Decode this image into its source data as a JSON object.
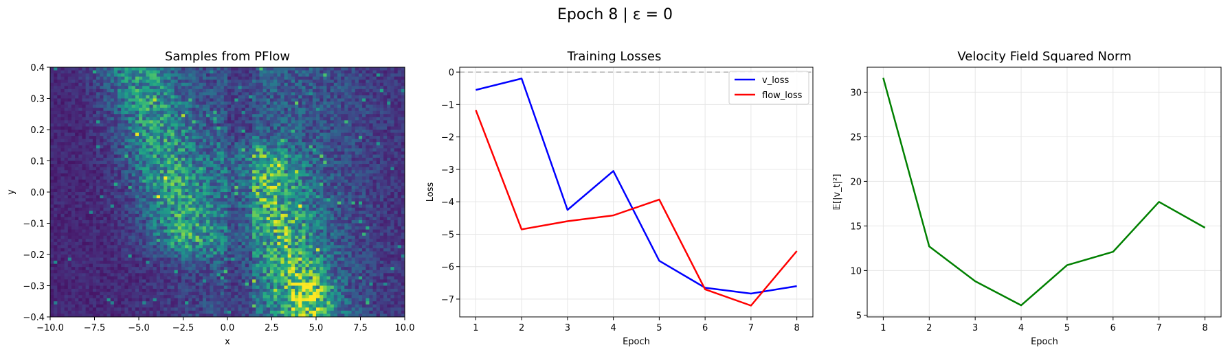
{
  "suptitle": "Epoch 8 | ε = 0",
  "chart_data": [
    {
      "type": "heatmap",
      "title": "Samples from PFlow",
      "xlabel": "x",
      "ylabel": "y",
      "xlim": [
        -10,
        10
      ],
      "ylim": [
        -0.4,
        0.4
      ],
      "x_ticks": [
        "−10.0",
        "−7.5",
        "−5.0",
        "−2.5",
        "0.0",
        "2.5",
        "5.0",
        "7.5",
        "10.0"
      ],
      "y_ticks": [
        "−0.4",
        "−0.3",
        "−0.2",
        "−0.1",
        "0.0",
        "0.1",
        "0.2",
        "0.3",
        "0.4"
      ],
      "colormap": "viridis",
      "bins": [
        100,
        80
      ],
      "distribution": {
        "description_of_bands": "two diagonal bands of sample density",
        "band_1": {
          "x_at_y_top": -5.0,
          "x_at_y_bottom": -1.0,
          "y_range": [
            -0.15,
            0.4
          ]
        },
        "band_2": {
          "x_at_y_top": 0.5,
          "x_at_y_bottom": 4.5,
          "y_range": [
            -0.4,
            0.1
          ]
        },
        "peak_region": {
          "x": 4.5,
          "y": -0.33
        }
      }
    },
    {
      "type": "line",
      "title": "Training Losses",
      "xlabel": "Epoch",
      "ylabel": "Loss",
      "x": [
        1,
        2,
        3,
        4,
        5,
        6,
        7,
        8
      ],
      "xlim": [
        0.65,
        8.35
      ],
      "ylim": [
        -7.55,
        0.15
      ],
      "x_ticks": [
        "1",
        "2",
        "3",
        "4",
        "5",
        "6",
        "7",
        "8"
      ],
      "y_ticks": [
        "−7",
        "−6",
        "−5",
        "−4",
        "−3",
        "−2",
        "−1",
        "0"
      ],
      "hline": {
        "y": 0,
        "style": "dashed",
        "color": "#b3b3b3"
      },
      "legend_position": "upper right",
      "grid": true,
      "series": [
        {
          "name": "v_loss",
          "color": "#0000ff",
          "values": [
            -0.55,
            -0.2,
            -4.25,
            -3.05,
            -5.82,
            -6.65,
            -6.83,
            -6.6
          ]
        },
        {
          "name": "flow_loss",
          "color": "#ff0000",
          "values": [
            -1.17,
            -4.85,
            -4.6,
            -4.42,
            -3.93,
            -6.7,
            -7.2,
            -5.52
          ]
        }
      ]
    },
    {
      "type": "line",
      "title": "Velocity Field Squared Norm",
      "xlabel": "Epoch",
      "ylabel": "𝔼[|v_t|²]",
      "x": [
        1,
        2,
        3,
        4,
        5,
        6,
        7,
        8
      ],
      "xlim": [
        0.65,
        8.35
      ],
      "ylim": [
        4.8,
        32.8
      ],
      "x_ticks": [
        "1",
        "2",
        "3",
        "4",
        "5",
        "6",
        "7",
        "8"
      ],
      "y_ticks": [
        "5",
        "10",
        "15",
        "20",
        "25",
        "30"
      ],
      "grid": true,
      "series": [
        {
          "color": "#008000",
          "values": [
            31.6,
            12.7,
            8.8,
            6.1,
            10.6,
            12.1,
            17.7,
            14.8
          ]
        }
      ]
    }
  ]
}
